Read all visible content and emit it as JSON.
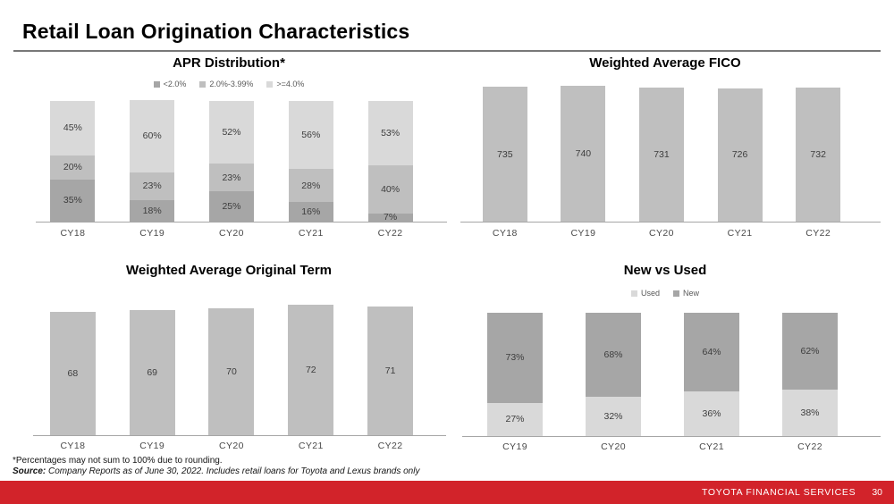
{
  "header": {
    "title": "Retail Loan Origination Characteristics"
  },
  "footnotes": {
    "rounding": "*Percentages may not sum to 100% due to rounding.",
    "source_label": "Source:",
    "source_text": " Company Reports as of June 30, 2022. Includes retail loans for Toyota and Lexus brands only"
  },
  "footer": {
    "company": "TOYOTA FINANCIAL SERVICES",
    "page_number": "30",
    "bar_color": "#D2232A"
  },
  "colors": {
    "gray_dark": "#a6a6a6",
    "gray_mid": "#bfbfbf",
    "gray_light": "#d9d9d9",
    "axis_line": "#a6a6a6"
  },
  "chart_data": [
    {
      "id": "apr",
      "type": "bar",
      "subtype": "stacked",
      "title": "APR Distribution*",
      "categories": [
        "CY18",
        "CY19",
        "CY20",
        "CY21",
        "CY22"
      ],
      "series": [
        {
          "name": "<2.0%",
          "color": "#a6a6a6",
          "values": [
            35,
            18,
            25,
            16,
            7
          ]
        },
        {
          "name": "2.0%-3.99%",
          "color": "#bfbfbf",
          "values": [
            20,
            23,
            23,
            28,
            40
          ]
        },
        {
          "name": ">=4.0%",
          "color": "#d9d9d9",
          "values": [
            45,
            60,
            52,
            56,
            53
          ]
        }
      ],
      "value_suffix": "%",
      "ylim": [
        0,
        100
      ],
      "legend": true,
      "legend_position": "top",
      "grid": false
    },
    {
      "id": "fico",
      "type": "bar",
      "title": "Weighted Average FICO",
      "categories": [
        "CY18",
        "CY19",
        "CY20",
        "CY21",
        "CY22"
      ],
      "values": [
        735,
        740,
        731,
        726,
        732
      ],
      "bar_color": "#bfbfbf",
      "value_suffix": "",
      "ylim": [
        0,
        745
      ],
      "legend": false,
      "grid": false
    },
    {
      "id": "term",
      "type": "bar",
      "title": "Weighted Average Original Term",
      "categories": [
        "CY18",
        "CY19",
        "CY20",
        "CY21",
        "CY22"
      ],
      "values": [
        68,
        69,
        70,
        72,
        71
      ],
      "bar_color": "#bfbfbf",
      "value_suffix": "",
      "ylim": [
        0,
        73
      ],
      "legend": false,
      "grid": false
    },
    {
      "id": "newused",
      "type": "bar",
      "subtype": "stacked",
      "title": "New vs Used",
      "categories": [
        "CY19",
        "CY20",
        "CY21",
        "CY22"
      ],
      "series": [
        {
          "name": "Used",
          "color": "#d9d9d9",
          "values": [
            27,
            32,
            36,
            38
          ]
        },
        {
          "name": "New",
          "color": "#a6a6a6",
          "values": [
            73,
            68,
            64,
            62
          ]
        }
      ],
      "value_suffix": "%",
      "ylim": [
        0,
        100
      ],
      "legend": true,
      "legend_position": "top",
      "grid": false
    }
  ]
}
